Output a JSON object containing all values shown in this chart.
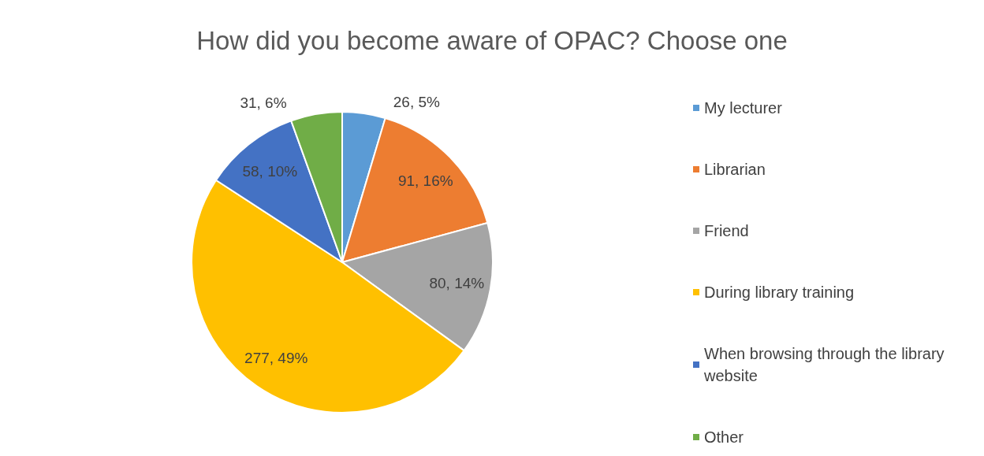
{
  "chart_data": {
    "type": "pie",
    "title": "How did you become aware of OPAC? Choose one",
    "categories": [
      "My lecturer",
      "Librarian",
      "Friend",
      "During library training",
      "When browsing through the library website",
      "Other"
    ],
    "values": [
      26,
      91,
      80,
      277,
      58,
      31
    ],
    "colors": [
      "#5b9bd5",
      "#ed7d31",
      "#a5a5a5",
      "#ffc000",
      "#4472c4",
      "#70ad47"
    ],
    "value_labels": [
      "26, 5%",
      "91, 16%",
      "80, 14%",
      "277, 49%",
      "58, 10%",
      "31, 6%"
    ],
    "legend": "right"
  }
}
